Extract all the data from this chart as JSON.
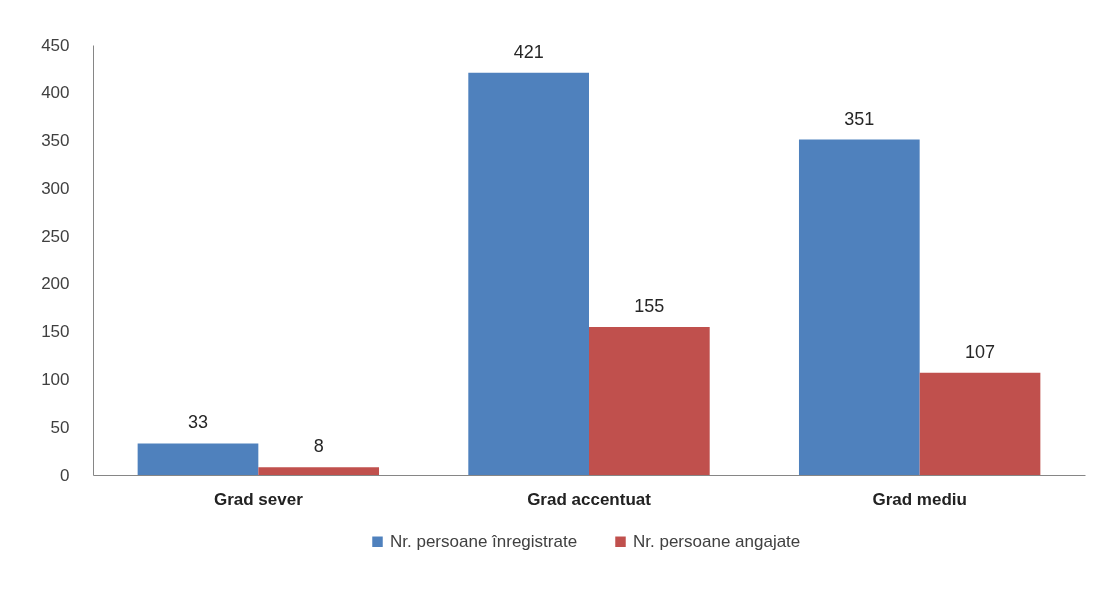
{
  "chart_data": {
    "type": "bar",
    "categories": [
      "Grad sever",
      "Grad accentuat",
      "Grad mediu"
    ],
    "series": [
      {
        "name": "Nr. persoane înregistrate",
        "color": "#4f81bd",
        "values": [
          33,
          421,
          351
        ]
      },
      {
        "name": "Nr. persoane angajate",
        "color": "#c0504d",
        "values": [
          8,
          155,
          107
        ]
      }
    ],
    "ylim": [
      0,
      450
    ],
    "yticks": [
      0,
      50,
      100,
      150,
      200,
      250,
      300,
      350,
      400,
      450
    ],
    "data_labels": true,
    "legend": "bottom"
  }
}
